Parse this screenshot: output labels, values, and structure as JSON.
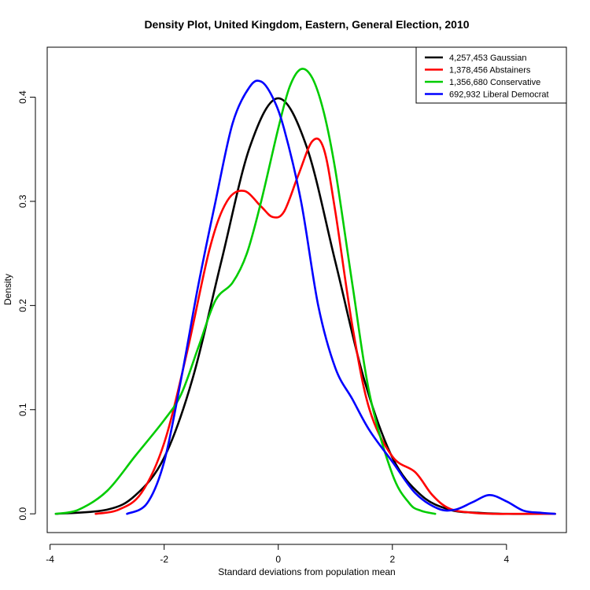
{
  "chart_data": {
    "type": "line",
    "title": "Density Plot, United Kingdom, Eastern, General Election, 2010",
    "xlabel": "Standard deviations from population mean",
    "ylabel": "Density",
    "xlim": [
      -4.05,
      5.05
    ],
    "ylim": [
      -0.018,
      0.448
    ],
    "x_ticks": [
      -4,
      -2,
      0,
      2,
      4
    ],
    "x_tick_labels": [
      "-4",
      "-2",
      "0",
      "2",
      "4"
    ],
    "y_ticks": [
      0.0,
      0.1,
      0.2,
      0.3,
      0.4
    ],
    "y_tick_labels": [
      "0.0",
      "0.1",
      "0.2",
      "0.3",
      "0.4"
    ],
    "grid": false,
    "legend_position": "top-right",
    "series": [
      {
        "name": "4,257,453 Gaussian",
        "color": "#000000",
        "x": [
          -3.9,
          -3.0,
          -2.5,
          -2.0,
          -1.5,
          -1.0,
          -0.5,
          0.0,
          0.5,
          1.0,
          1.5,
          2.0,
          2.5,
          3.0,
          3.5,
          4.0,
          4.85
        ],
        "y": [
          0.0,
          0.004,
          0.018,
          0.054,
          0.13,
          0.242,
          0.352,
          0.399,
          0.352,
          0.242,
          0.13,
          0.054,
          0.018,
          0.004,
          0.001,
          0.0,
          0.0
        ]
      },
      {
        "name": "1,378,456 Abstainers",
        "color": "#ff0000",
        "x": [
          -3.2,
          -2.8,
          -2.4,
          -2.0,
          -1.6,
          -1.2,
          -0.9,
          -0.6,
          -0.3,
          -0.1,
          0.1,
          0.35,
          0.6,
          0.8,
          1.0,
          1.3,
          1.6,
          2.0,
          2.4,
          2.7,
          3.0,
          3.4,
          3.8,
          4.2,
          4.85
        ],
        "y": [
          0.0,
          0.004,
          0.02,
          0.068,
          0.155,
          0.255,
          0.3,
          0.31,
          0.295,
          0.285,
          0.29,
          0.325,
          0.358,
          0.35,
          0.29,
          0.18,
          0.1,
          0.055,
          0.04,
          0.018,
          0.005,
          0.001,
          0.0,
          0.0,
          0.0
        ]
      },
      {
        "name": "1,356,680 Conservative",
        "color": "#00cc00",
        "x": [
          -3.9,
          -3.5,
          -3.0,
          -2.5,
          -2.0,
          -1.7,
          -1.4,
          -1.1,
          -0.8,
          -0.55,
          -0.3,
          0.0,
          0.2,
          0.4,
          0.6,
          0.8,
          1.0,
          1.3,
          1.6,
          2.0,
          2.3,
          2.5,
          2.75
        ],
        "y": [
          0.0,
          0.004,
          0.022,
          0.056,
          0.09,
          0.115,
          0.16,
          0.205,
          0.222,
          0.25,
          0.3,
          0.37,
          0.41,
          0.427,
          0.418,
          0.385,
          0.33,
          0.22,
          0.115,
          0.038,
          0.01,
          0.003,
          0.0
        ]
      },
      {
        "name": "692,932 Liberal Democrat",
        "color": "#0000ff",
        "x": [
          -2.65,
          -2.3,
          -2.0,
          -1.7,
          -1.4,
          -1.1,
          -0.8,
          -0.5,
          -0.3,
          -0.1,
          0.1,
          0.4,
          0.7,
          1.0,
          1.3,
          1.6,
          2.0,
          2.4,
          2.8,
          3.1,
          3.4,
          3.7,
          4.0,
          4.3,
          4.6,
          4.85
        ],
        "y": [
          0.0,
          0.01,
          0.05,
          0.13,
          0.22,
          0.3,
          0.375,
          0.41,
          0.415,
          0.4,
          0.37,
          0.3,
          0.2,
          0.14,
          0.11,
          0.08,
          0.05,
          0.02,
          0.005,
          0.004,
          0.011,
          0.018,
          0.012,
          0.003,
          0.001,
          0.0
        ]
      }
    ]
  }
}
